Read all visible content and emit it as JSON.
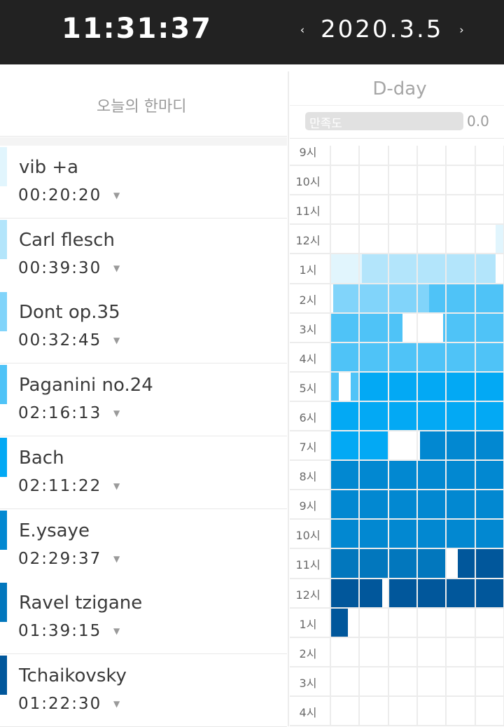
{
  "header": {
    "clock": "11:31:37",
    "date": "2020.3.5",
    "prev_arrow": "‹",
    "next_arrow": "›"
  },
  "greeting": {
    "label": "오늘의 한마디"
  },
  "dday": {
    "label": "D-day"
  },
  "satisfaction": {
    "label": "만족도",
    "value": "0.0",
    "fraction": 0.0
  },
  "items": [
    {
      "name": "vib +a",
      "time": "00:20:20",
      "color": "#e1f5fd"
    },
    {
      "name": "Carl flesch",
      "time": "00:39:30",
      "color": "#b3e5fb"
    },
    {
      "name": "Dont op.35",
      "time": "00:32:45",
      "color": "#81d4fa"
    },
    {
      "name": "Paganini no.24",
      "time": "02:16:13",
      "color": "#4fc3f7"
    },
    {
      "name": "Bach",
      "time": "02:11:22",
      "color": "#03a9f4"
    },
    {
      "name": "E.ysaye",
      "time": "02:29:37",
      "color": "#0288d1"
    },
    {
      "name": "Ravel tzigane",
      "time": "01:39:15",
      "color": "#0277bd"
    },
    {
      "name": "Tchaikovsky",
      "time": "01:22:30",
      "color": "#01579b"
    }
  ],
  "timeline": {
    "hours": [
      "9시",
      "10시",
      "11시",
      "12시",
      "1시",
      "2시",
      "3시",
      "4시",
      "5시",
      "6시",
      "7시",
      "8시",
      "9시",
      "10시",
      "11시",
      "12시",
      "1시",
      "2시",
      "3시",
      "4시"
    ],
    "fills": [
      [],
      [],
      [],
      [
        [
          57,
          60,
          "#e1f5fd"
        ]
      ],
      [
        [
          0,
          11,
          "#e1f5fd"
        ],
        [
          11,
          39,
          "#b3e5fb"
        ],
        [
          39,
          57,
          "#b3e5fb"
        ]
      ],
      [
        [
          1,
          23,
          "#81d4fa"
        ],
        [
          23,
          34,
          "#81d4fa"
        ],
        [
          34,
          60,
          "#4fc3f7"
        ]
      ],
      [
        [
          0,
          25,
          "#4fc3f7"
        ],
        [
          39,
          60,
          "#4fc3f7"
        ]
      ],
      [
        [
          0,
          60,
          "#4fc3f7"
        ]
      ],
      [
        [
          0,
          3,
          "#4fc3f7"
        ],
        [
          7,
          10,
          "#4fc3f7"
        ],
        [
          10,
          60,
          "#03a9f4"
        ]
      ],
      [
        [
          0,
          60,
          "#03a9f4"
        ]
      ],
      [
        [
          0,
          20,
          "#03a9f4"
        ],
        [
          31,
          60,
          "#0288d1"
        ]
      ],
      [
        [
          0,
          60,
          "#0288d1"
        ]
      ],
      [
        [
          0,
          60,
          "#0288d1"
        ]
      ],
      [
        [
          0,
          60,
          "#0288d1"
        ]
      ],
      [
        [
          0,
          40,
          "#0277bd"
        ],
        [
          44,
          60,
          "#01579b"
        ]
      ],
      [
        [
          0,
          18,
          "#01579b"
        ],
        [
          20,
          60,
          "#01579b"
        ]
      ],
      [
        [
          0,
          6,
          "#01579b"
        ]
      ],
      [],
      [],
      []
    ]
  }
}
